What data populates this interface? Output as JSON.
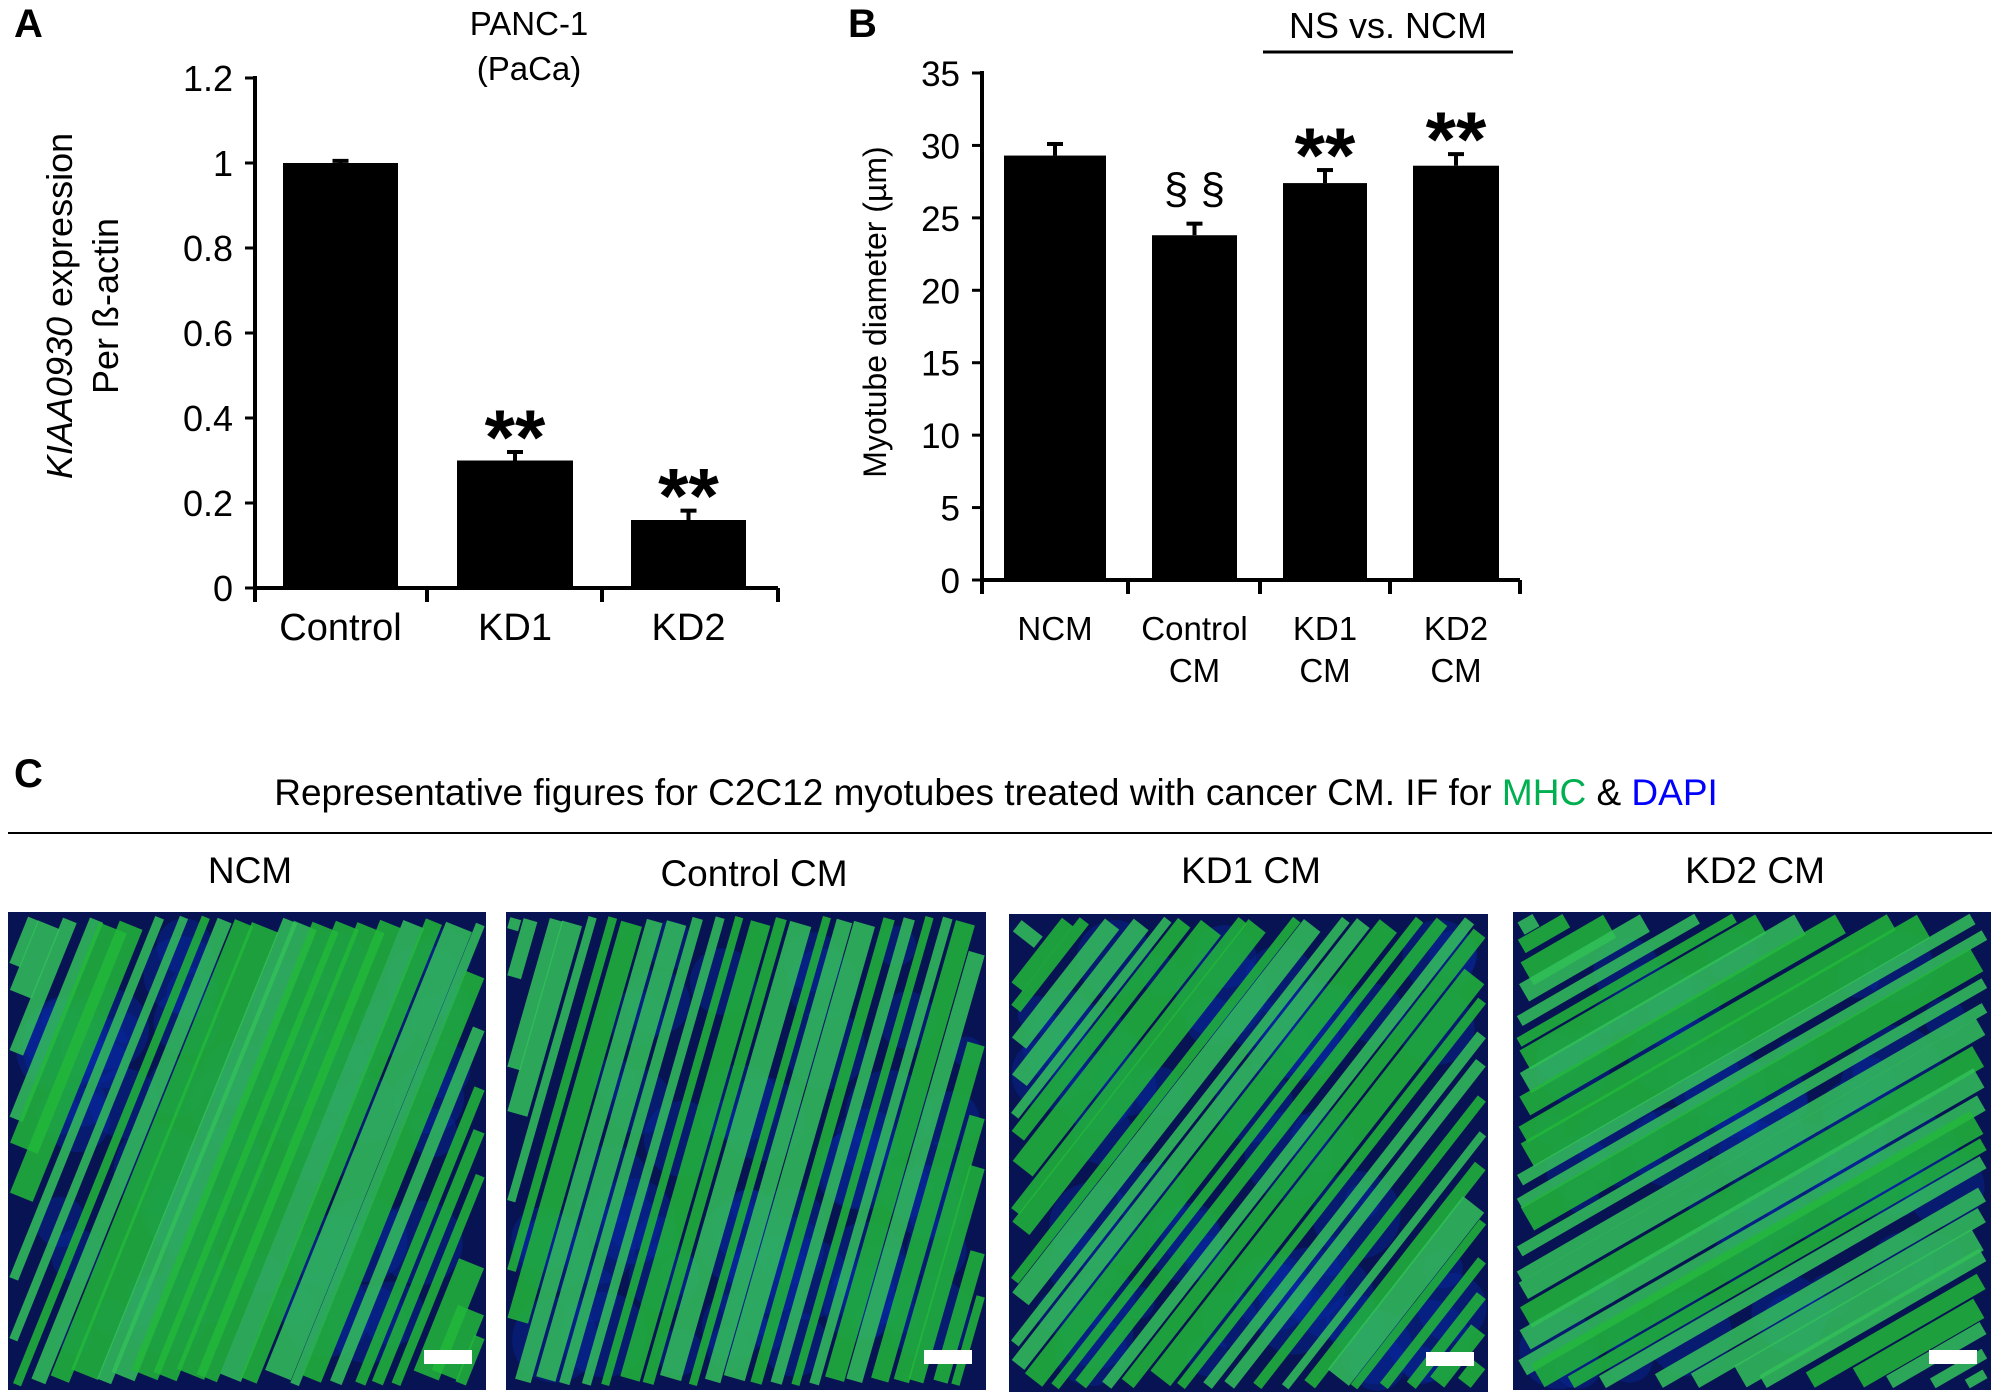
{
  "panel_labels": {
    "a": "A",
    "b": "B",
    "c": "C"
  },
  "chart_data": [
    {
      "type": "bar",
      "title_lines": [
        "PANC-1",
        "(PaCa)"
      ],
      "ylabel_italic": "KIAA0930",
      "ylabel_rest": " expression",
      "ylabel_line2": "Per ß-actin",
      "xlabel": "",
      "categories": [
        [
          "Control"
        ],
        [
          "KD1"
        ],
        [
          "KD2"
        ]
      ],
      "values": [
        1.0,
        0.3,
        0.16
      ],
      "errors": [
        0.005,
        0.02,
        0.022
      ],
      "annotations": [
        "",
        "**",
        "**"
      ],
      "ylim": [
        0,
        1.2
      ],
      "yticks": [
        0,
        0.2,
        0.4,
        0.6,
        0.8,
        1,
        1.2
      ],
      "ytick_labels": [
        "0",
        "0.2",
        "0.4",
        "0.6",
        "0.8",
        "1",
        "1.2"
      ],
      "bar_color": "#000000",
      "grid": false
    },
    {
      "type": "bar",
      "ylabel": "Myotube diameter (µm)",
      "xlabel": "",
      "categories": [
        [
          "NCM"
        ],
        [
          "Control",
          "CM"
        ],
        [
          "KD1",
          "CM"
        ],
        [
          "KD2",
          "CM"
        ]
      ],
      "values": [
        29.3,
        23.8,
        27.4,
        28.6
      ],
      "errors": [
        0.8,
        0.8,
        0.9,
        0.8
      ],
      "annotations": [
        "",
        "§ §",
        "**",
        "**"
      ],
      "bracket_label": "NS vs. NCM",
      "ylim": [
        0,
        35
      ],
      "yticks": [
        0,
        5,
        10,
        15,
        20,
        25,
        30,
        35
      ],
      "ytick_labels": [
        "0",
        "5",
        "10",
        "15",
        "20",
        "25",
        "30",
        "35"
      ],
      "bar_color": "#000000",
      "grid": false
    }
  ],
  "panel_c": {
    "caption_prefix": "Representative figures for C2C12 myotubes treated with cancer CM. IF for ",
    "caption_mhc": "MHC",
    "caption_amp": " & ",
    "caption_dapi": "DAPI",
    "mhc_color": "#00b050",
    "dapi_color": "#0000ff",
    "images": [
      {
        "title": "NCM"
      },
      {
        "title": "Control CM"
      },
      {
        "title": "KD1 CM"
      },
      {
        "title": "KD2 CM"
      }
    ]
  }
}
